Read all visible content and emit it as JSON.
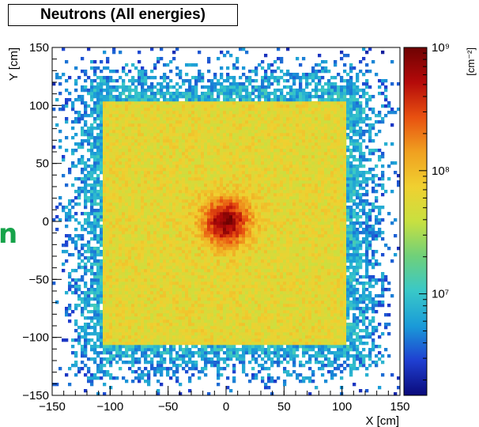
{
  "page_title": "Neutrons (All energies)",
  "chart_data": {
    "type": "heatmap",
    "title": "Neutrons (All energies)",
    "xlabel": "X [cm]",
    "ylabel": "Y [cm]",
    "zlabel": "[cm⁻²]",
    "xlim": [
      -150,
      150
    ],
    "ylim": [
      -150,
      150
    ],
    "x_ticks": [
      -150,
      -100,
      -50,
      0,
      50,
      100,
      150
    ],
    "y_ticks": [
      -150,
      -100,
      -50,
      0,
      50,
      100,
      150
    ],
    "z_scale": "log",
    "z_range": [
      1500000,
      1000000000
    ],
    "z_tick_labels": [
      "10⁹",
      "10⁸",
      "10⁷"
    ],
    "z_tick_values": [
      1000000000,
      100000000,
      10000000
    ],
    "source_center": [
      0,
      0
    ],
    "source_peak_flux": 1000000000,
    "plateau_region": {
      "x": [
        -105,
        105
      ],
      "y": [
        -105,
        105
      ],
      "flux": 60000000
    },
    "outer_halo_flux": 8000000,
    "colormap": [
      "#0a0a7a",
      "#1f3fd1",
      "#1a9bd8",
      "#39c8c8",
      "#6fd07a",
      "#c8e040",
      "#f0d030",
      "#f0a020",
      "#e85010",
      "#b40a0a",
      "#6e0202"
    ],
    "grid": false
  },
  "decorations": {
    "left_edge_glyph": "n",
    "left_edge_color": "#16a34a"
  }
}
